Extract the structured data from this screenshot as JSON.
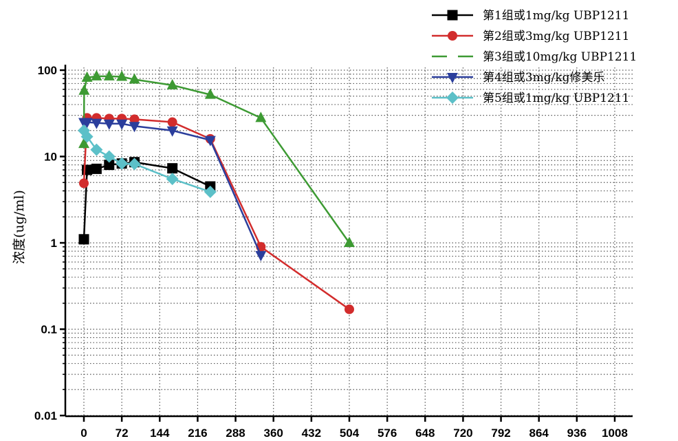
{
  "chart_data": {
    "type": "line",
    "ylabel": "浓度(ug/ml)",
    "xlabel": "",
    "y_scale": "log",
    "ylim": [
      0.01,
      120
    ],
    "xlim": [
      -24,
      1032
    ],
    "x_ticks": [
      0,
      72,
      144,
      216,
      288,
      360,
      432,
      504,
      576,
      648,
      720,
      792,
      864,
      936,
      1008
    ],
    "y_ticks": [
      0.01,
      0.1,
      1,
      10,
      100
    ],
    "y_tick_labels": [
      "0.01",
      "0.1",
      "1",
      "10",
      "100"
    ],
    "grid": true,
    "legend_position": "top-right",
    "series": [
      {
        "name": "第1组或1mg/kg UBP1211",
        "color": "#000000",
        "marker": "square",
        "line_style": "solid",
        "x": [
          0,
          6,
          24,
          48,
          72,
          96,
          168,
          240
        ],
        "y": [
          1.1,
          7.0,
          7.2,
          8.0,
          8.3,
          8.6,
          7.3,
          4.5
        ]
      },
      {
        "name": "第2组或3mg/kg UBP1211",
        "color": "#d22c2c",
        "marker": "circle",
        "line_style": "solid",
        "x": [
          0,
          6,
          24,
          48,
          72,
          96,
          168,
          240,
          336,
          504
        ],
        "y": [
          4.9,
          28,
          28,
          27.5,
          27.5,
          27,
          25,
          16,
          0.9,
          0.17
        ]
      },
      {
        "name": "第3组或10mg/kg UBP1211",
        "color": "#3d9a33",
        "marker": "triangle-up",
        "line_style": "solid",
        "x": [
          0,
          0.5,
          6,
          24,
          48,
          72,
          96,
          168,
          240,
          336,
          504
        ],
        "y": [
          14,
          58,
          82,
          85,
          85,
          84,
          78,
          67,
          52,
          28,
          1.0
        ]
      },
      {
        "name": "第4组或3mg/kg修美乐",
        "color": "#2b3e9c",
        "marker": "triangle-down",
        "line_style": "solid",
        "x": [
          0,
          6,
          24,
          48,
          72,
          96,
          168,
          240,
          336
        ],
        "y": [
          25,
          25,
          24.5,
          24,
          24,
          22.5,
          20,
          15.5,
          0.72
        ]
      },
      {
        "name": "第5组或1mg/kg UBP1211",
        "color": "#5cc0c8",
        "marker": "diamond",
        "line_style": "solid",
        "x": [
          0,
          6,
          24,
          48,
          72,
          96,
          168,
          240
        ],
        "y": [
          20,
          17,
          12,
          10,
          8.3,
          8.2,
          5.5,
          3.9
        ]
      }
    ]
  }
}
